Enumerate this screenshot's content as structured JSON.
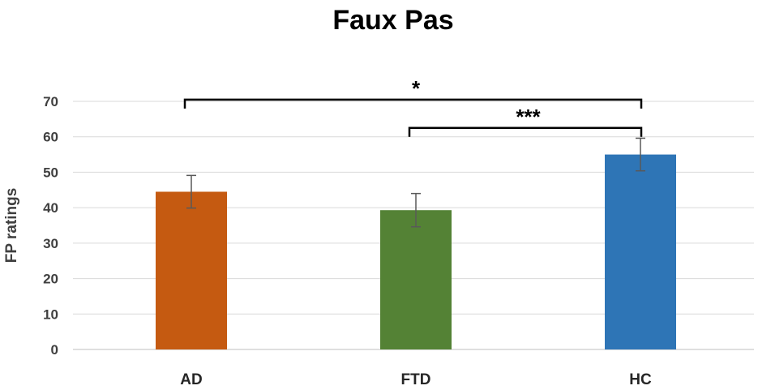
{
  "chart_data": {
    "type": "bar",
    "title": "Faux Pas",
    "ylabel": "FP ratings",
    "xlabel": "",
    "ylim": [
      0,
      70
    ],
    "yticks": [
      0,
      10,
      20,
      30,
      40,
      50,
      60,
      70
    ],
    "grid": true,
    "categories": [
      "AD",
      "FTD",
      "HC"
    ],
    "values": [
      44.5,
      39.3,
      55.0
    ],
    "errors": [
      4.6,
      4.7,
      4.6
    ],
    "colors": [
      "#C55A11",
      "#548235",
      "#2E75B6"
    ],
    "significance": [
      {
        "from": "AD",
        "to": "HC",
        "label": "*",
        "level": 70.5
      },
      {
        "from": "FTD",
        "to": "HC",
        "label": "***",
        "level": 62.5
      }
    ]
  }
}
